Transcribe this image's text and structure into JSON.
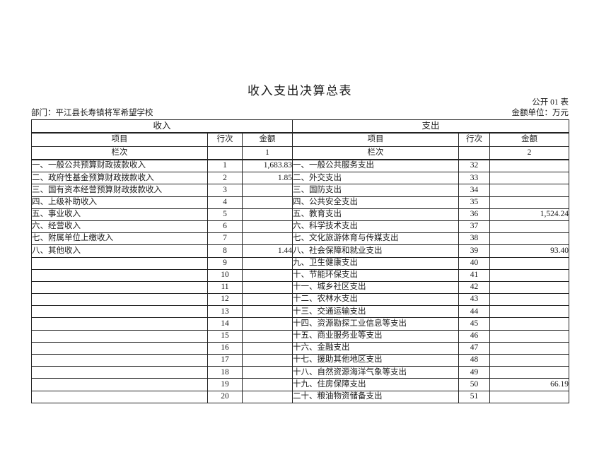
{
  "header": {
    "title": "收入支出决算总表",
    "table_code": "公开 01 表",
    "department": "部门：平江县长寿镇将军希望学校",
    "unit_note": "金额单位：万元"
  },
  "table": {
    "income_section_label": "收入",
    "expense_section_label": "支出",
    "col_item": "项目",
    "col_line": "行次",
    "col_amount": "金额",
    "col_index_label": "栏次",
    "income_col_index": "1",
    "expense_col_index": "2",
    "income_rows": [
      {
        "item": "一、一般公共预算财政拨款收入",
        "line": "1",
        "amount": "1,683.83"
      },
      {
        "item": "二、政府性基金预算财政拨款收入",
        "line": "2",
        "amount": "1.85"
      },
      {
        "item": "三、国有资本经营预算财政拨款收入",
        "line": "3",
        "amount": ""
      },
      {
        "item": "四、上级补助收入",
        "line": "4",
        "amount": ""
      },
      {
        "item": "五、事业收入",
        "line": "5",
        "amount": ""
      },
      {
        "item": "六、经营收入",
        "line": "6",
        "amount": ""
      },
      {
        "item": "七、附属单位上缴收入",
        "line": "7",
        "amount": ""
      },
      {
        "item": "八、其他收入",
        "line": "8",
        "amount": "1.44"
      },
      {
        "item": "",
        "line": "9",
        "amount": ""
      },
      {
        "item": "",
        "line": "10",
        "amount": ""
      },
      {
        "item": "",
        "line": "11",
        "amount": ""
      },
      {
        "item": "",
        "line": "12",
        "amount": ""
      },
      {
        "item": "",
        "line": "13",
        "amount": ""
      },
      {
        "item": "",
        "line": "14",
        "amount": ""
      },
      {
        "item": "",
        "line": "15",
        "amount": ""
      },
      {
        "item": "",
        "line": "16",
        "amount": ""
      },
      {
        "item": "",
        "line": "17",
        "amount": ""
      },
      {
        "item": "",
        "line": "18",
        "amount": ""
      },
      {
        "item": "",
        "line": "19",
        "amount": ""
      },
      {
        "item": "",
        "line": "20",
        "amount": ""
      }
    ],
    "expense_rows": [
      {
        "item": "一、一般公共服务支出",
        "line": "32",
        "amount": ""
      },
      {
        "item": "二、外交支出",
        "line": "33",
        "amount": ""
      },
      {
        "item": "三、国防支出",
        "line": "34",
        "amount": ""
      },
      {
        "item": "四、公共安全支出",
        "line": "35",
        "amount": ""
      },
      {
        "item": "五、教育支出",
        "line": "36",
        "amount": "1,524.24"
      },
      {
        "item": "六、科学技术支出",
        "line": "37",
        "amount": ""
      },
      {
        "item": "七、文化旅游体育与传媒支出",
        "line": "38",
        "amount": ""
      },
      {
        "item": "八、社会保障和就业支出",
        "line": "39",
        "amount": "93.40"
      },
      {
        "item": "九、卫生健康支出",
        "line": "40",
        "amount": ""
      },
      {
        "item": "十、节能环保支出",
        "line": "41",
        "amount": ""
      },
      {
        "item": "十一、城乡社区支出",
        "line": "42",
        "amount": ""
      },
      {
        "item": "十二、农林水支出",
        "line": "43",
        "amount": ""
      },
      {
        "item": "十三、交通运输支出",
        "line": "44",
        "amount": ""
      },
      {
        "item": "十四、资源勘探工业信息等支出",
        "line": "45",
        "amount": ""
      },
      {
        "item": "十五、商业服务业等支出",
        "line": "46",
        "amount": ""
      },
      {
        "item": "十六、金融支出",
        "line": "47",
        "amount": ""
      },
      {
        "item": "十七、援助其他地区支出",
        "line": "48",
        "amount": ""
      },
      {
        "item": "十八、自然资源海洋气象等支出",
        "line": "49",
        "amount": ""
      },
      {
        "item": "十九、住房保障支出",
        "line": "50",
        "amount": "66.19"
      },
      {
        "item": "二十、粮油物资储备支出",
        "line": "51",
        "amount": ""
      }
    ]
  }
}
